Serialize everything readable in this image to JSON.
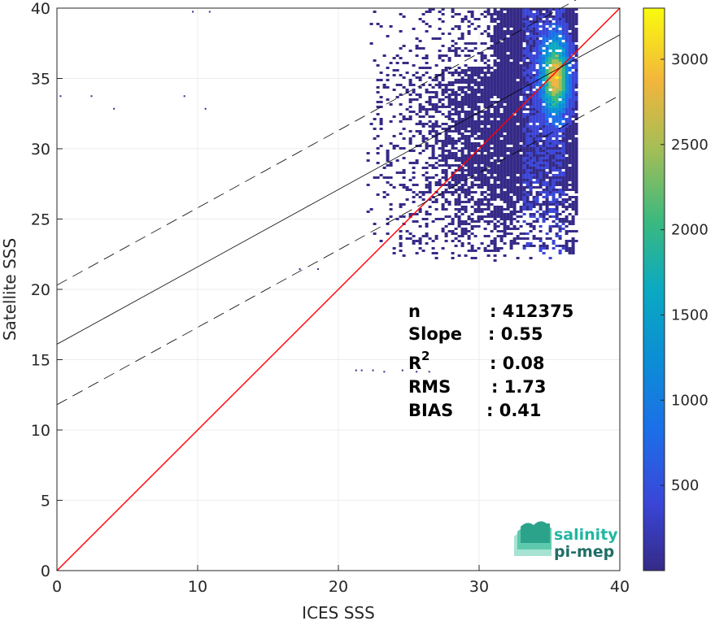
{
  "chart_data": {
    "type": "heatmap",
    "xlabel": "ICES SSS",
    "ylabel": "Satellite SSS",
    "xlim": [
      0,
      40
    ],
    "ylim": [
      0,
      40
    ],
    "xticks": [
      "0",
      "10",
      "20",
      "30",
      "40"
    ],
    "yticks": [
      "0",
      "5",
      "10",
      "15",
      "20",
      "25",
      "30",
      "35",
      "40"
    ],
    "grid": true,
    "colorbar": {
      "colormap": "parula",
      "range": [
        0,
        3300
      ],
      "ticks": [
        "500",
        "1000",
        "1500",
        "2000",
        "2500",
        "3000"
      ]
    },
    "lines": [
      {
        "name": "identity",
        "color": "#ff0000",
        "style": "solid",
        "intercept": 0,
        "slope": 1
      },
      {
        "name": "regression",
        "color": "#000000",
        "style": "solid",
        "intercept": 16.1,
        "slope": 0.55
      },
      {
        "name": "regression-upper",
        "color": "#000000",
        "style": "dashed",
        "intercept": 20.3,
        "slope": 0.55
      },
      {
        "name": "regression-lower",
        "color": "#000000",
        "style": "dashed",
        "intercept": 11.8,
        "slope": 0.55
      }
    ],
    "density": {
      "peak": {
        "x": 35.3,
        "y": 35.2
      },
      "core_range": {
        "x": [
          31,
          36.5
        ],
        "y": [
          28,
          40
        ]
      },
      "outer_range": {
        "x": [
          22,
          37
        ],
        "y": [
          22,
          40
        ]
      }
    },
    "stats": [
      {
        "label": "n",
        "value": ": 412375"
      },
      {
        "label": "Slope",
        "value": ": 0.55"
      },
      {
        "label": "R",
        "sup": "2",
        "value": ": 0.08"
      },
      {
        "label": "RMS",
        "value": ": 1.73"
      },
      {
        "label": "BIAS",
        "value": ": 0.41"
      }
    ]
  },
  "logo": {
    "line1": "salinity",
    "line2": "pi-mep"
  }
}
